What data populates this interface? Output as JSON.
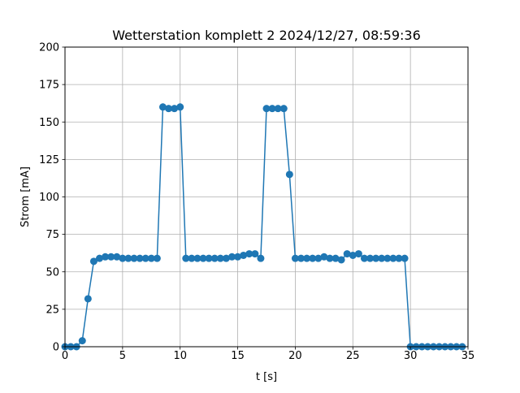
{
  "chart_data": {
    "type": "line",
    "title": "Wetterstation komplett 2 2024/12/27, 08:59:36",
    "xlabel": "t [s]",
    "ylabel": "Strom [mA]",
    "xlim": [
      0,
      35
    ],
    "ylim": [
      0,
      200
    ],
    "grid": true,
    "line_color": "#1f77b4",
    "x_ticks": [
      {
        "value": 0,
        "label": "0"
      },
      {
        "value": 5,
        "label": "5"
      },
      {
        "value": 10,
        "label": "10"
      },
      {
        "value": 15,
        "label": "15"
      },
      {
        "value": 20,
        "label": "20"
      },
      {
        "value": 25,
        "label": "25"
      },
      {
        "value": 30,
        "label": "30"
      },
      {
        "value": 35,
        "label": "35"
      }
    ],
    "y_ticks": [
      {
        "value": 0,
        "label": "0"
      },
      {
        "value": 25,
        "label": "25"
      },
      {
        "value": 50,
        "label": "50"
      },
      {
        "value": 75,
        "label": "75"
      },
      {
        "value": 100,
        "label": "100"
      },
      {
        "value": 125,
        "label": "125"
      },
      {
        "value": 150,
        "label": "150"
      },
      {
        "value": 175,
        "label": "175"
      },
      {
        "value": 200,
        "label": "200"
      }
    ],
    "series": [
      {
        "x": [
          0,
          0.5,
          1,
          1.5,
          2,
          2.5,
          3,
          3.5,
          4,
          4.5,
          5,
          5.5,
          6,
          6.5,
          7,
          7.5,
          8,
          8.5,
          9,
          9.5,
          10,
          10.5,
          11,
          11.5,
          12,
          12.5,
          13,
          13.5,
          14,
          14.5,
          15,
          15.5,
          16,
          16.5,
          17,
          17.5,
          18,
          18.5,
          19,
          19.5,
          20,
          20.5,
          21,
          21.5,
          22,
          22.5,
          23,
          23.5,
          24,
          24.5,
          25,
          25.5,
          26,
          26.5,
          27,
          27.5,
          28,
          28.5,
          29,
          29.5,
          30,
          30.5,
          31,
          31.5,
          32,
          32.5,
          33,
          33.5,
          34,
          34.5
        ],
        "y": [
          0,
          0,
          0,
          4,
          32,
          57,
          59,
          60,
          60,
          60,
          59,
          59,
          59,
          59,
          59,
          59,
          59,
          160,
          159,
          159,
          160,
          59,
          59,
          59,
          59,
          59,
          59,
          59,
          59,
          60,
          60,
          61,
          62,
          62,
          59,
          159,
          159,
          159,
          159,
          115,
          59,
          59,
          59,
          59,
          59,
          60,
          59,
          59,
          58,
          62,
          61,
          62,
          59,
          59,
          59,
          59,
          59,
          59,
          59,
          59,
          0,
          0,
          0,
          0,
          0,
          0,
          0,
          0,
          0,
          0
        ]
      }
    ]
  }
}
